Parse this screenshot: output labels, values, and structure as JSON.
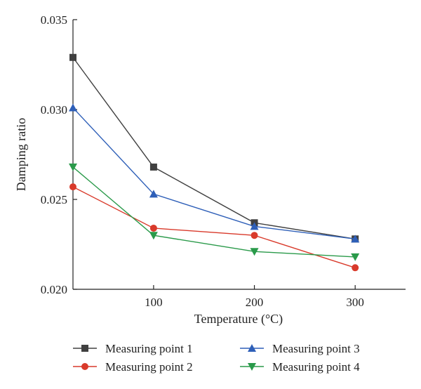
{
  "chart_data": {
    "type": "line",
    "title": "",
    "xlabel": "Temperature (°C)",
    "ylabel": "Damping ratio",
    "x": [
      20,
      100,
      200,
      300
    ],
    "xlim": [
      20,
      350
    ],
    "ylim": [
      0.02,
      0.035
    ],
    "xticks": [
      100,
      200,
      300
    ],
    "xtick_labels": [
      "100",
      "200",
      "300"
    ],
    "yticks": [
      0.02,
      0.025,
      0.03,
      0.035
    ],
    "ytick_labels": [
      "0.020",
      "0.025",
      "0.030",
      "0.035"
    ],
    "grid": false,
    "legend_placement": "bottom",
    "series": [
      {
        "name": "Measuring point 1",
        "values": [
          0.0329,
          0.0268,
          0.0237,
          0.0228
        ],
        "color": "#404040",
        "marker": "square"
      },
      {
        "name": "Measuring point 2",
        "values": [
          0.0257,
          0.0234,
          0.023,
          0.0212
        ],
        "color": "#d93a2b",
        "marker": "circle"
      },
      {
        "name": "Measuring point 3",
        "values": [
          0.0301,
          0.0253,
          0.0235,
          0.0228
        ],
        "color": "#2e5fb8",
        "marker": "triangle-up"
      },
      {
        "name": "Measuring point 4",
        "values": [
          0.0268,
          0.023,
          0.0221,
          0.0218
        ],
        "color": "#2a9a4a",
        "marker": "triangle-down"
      }
    ]
  }
}
